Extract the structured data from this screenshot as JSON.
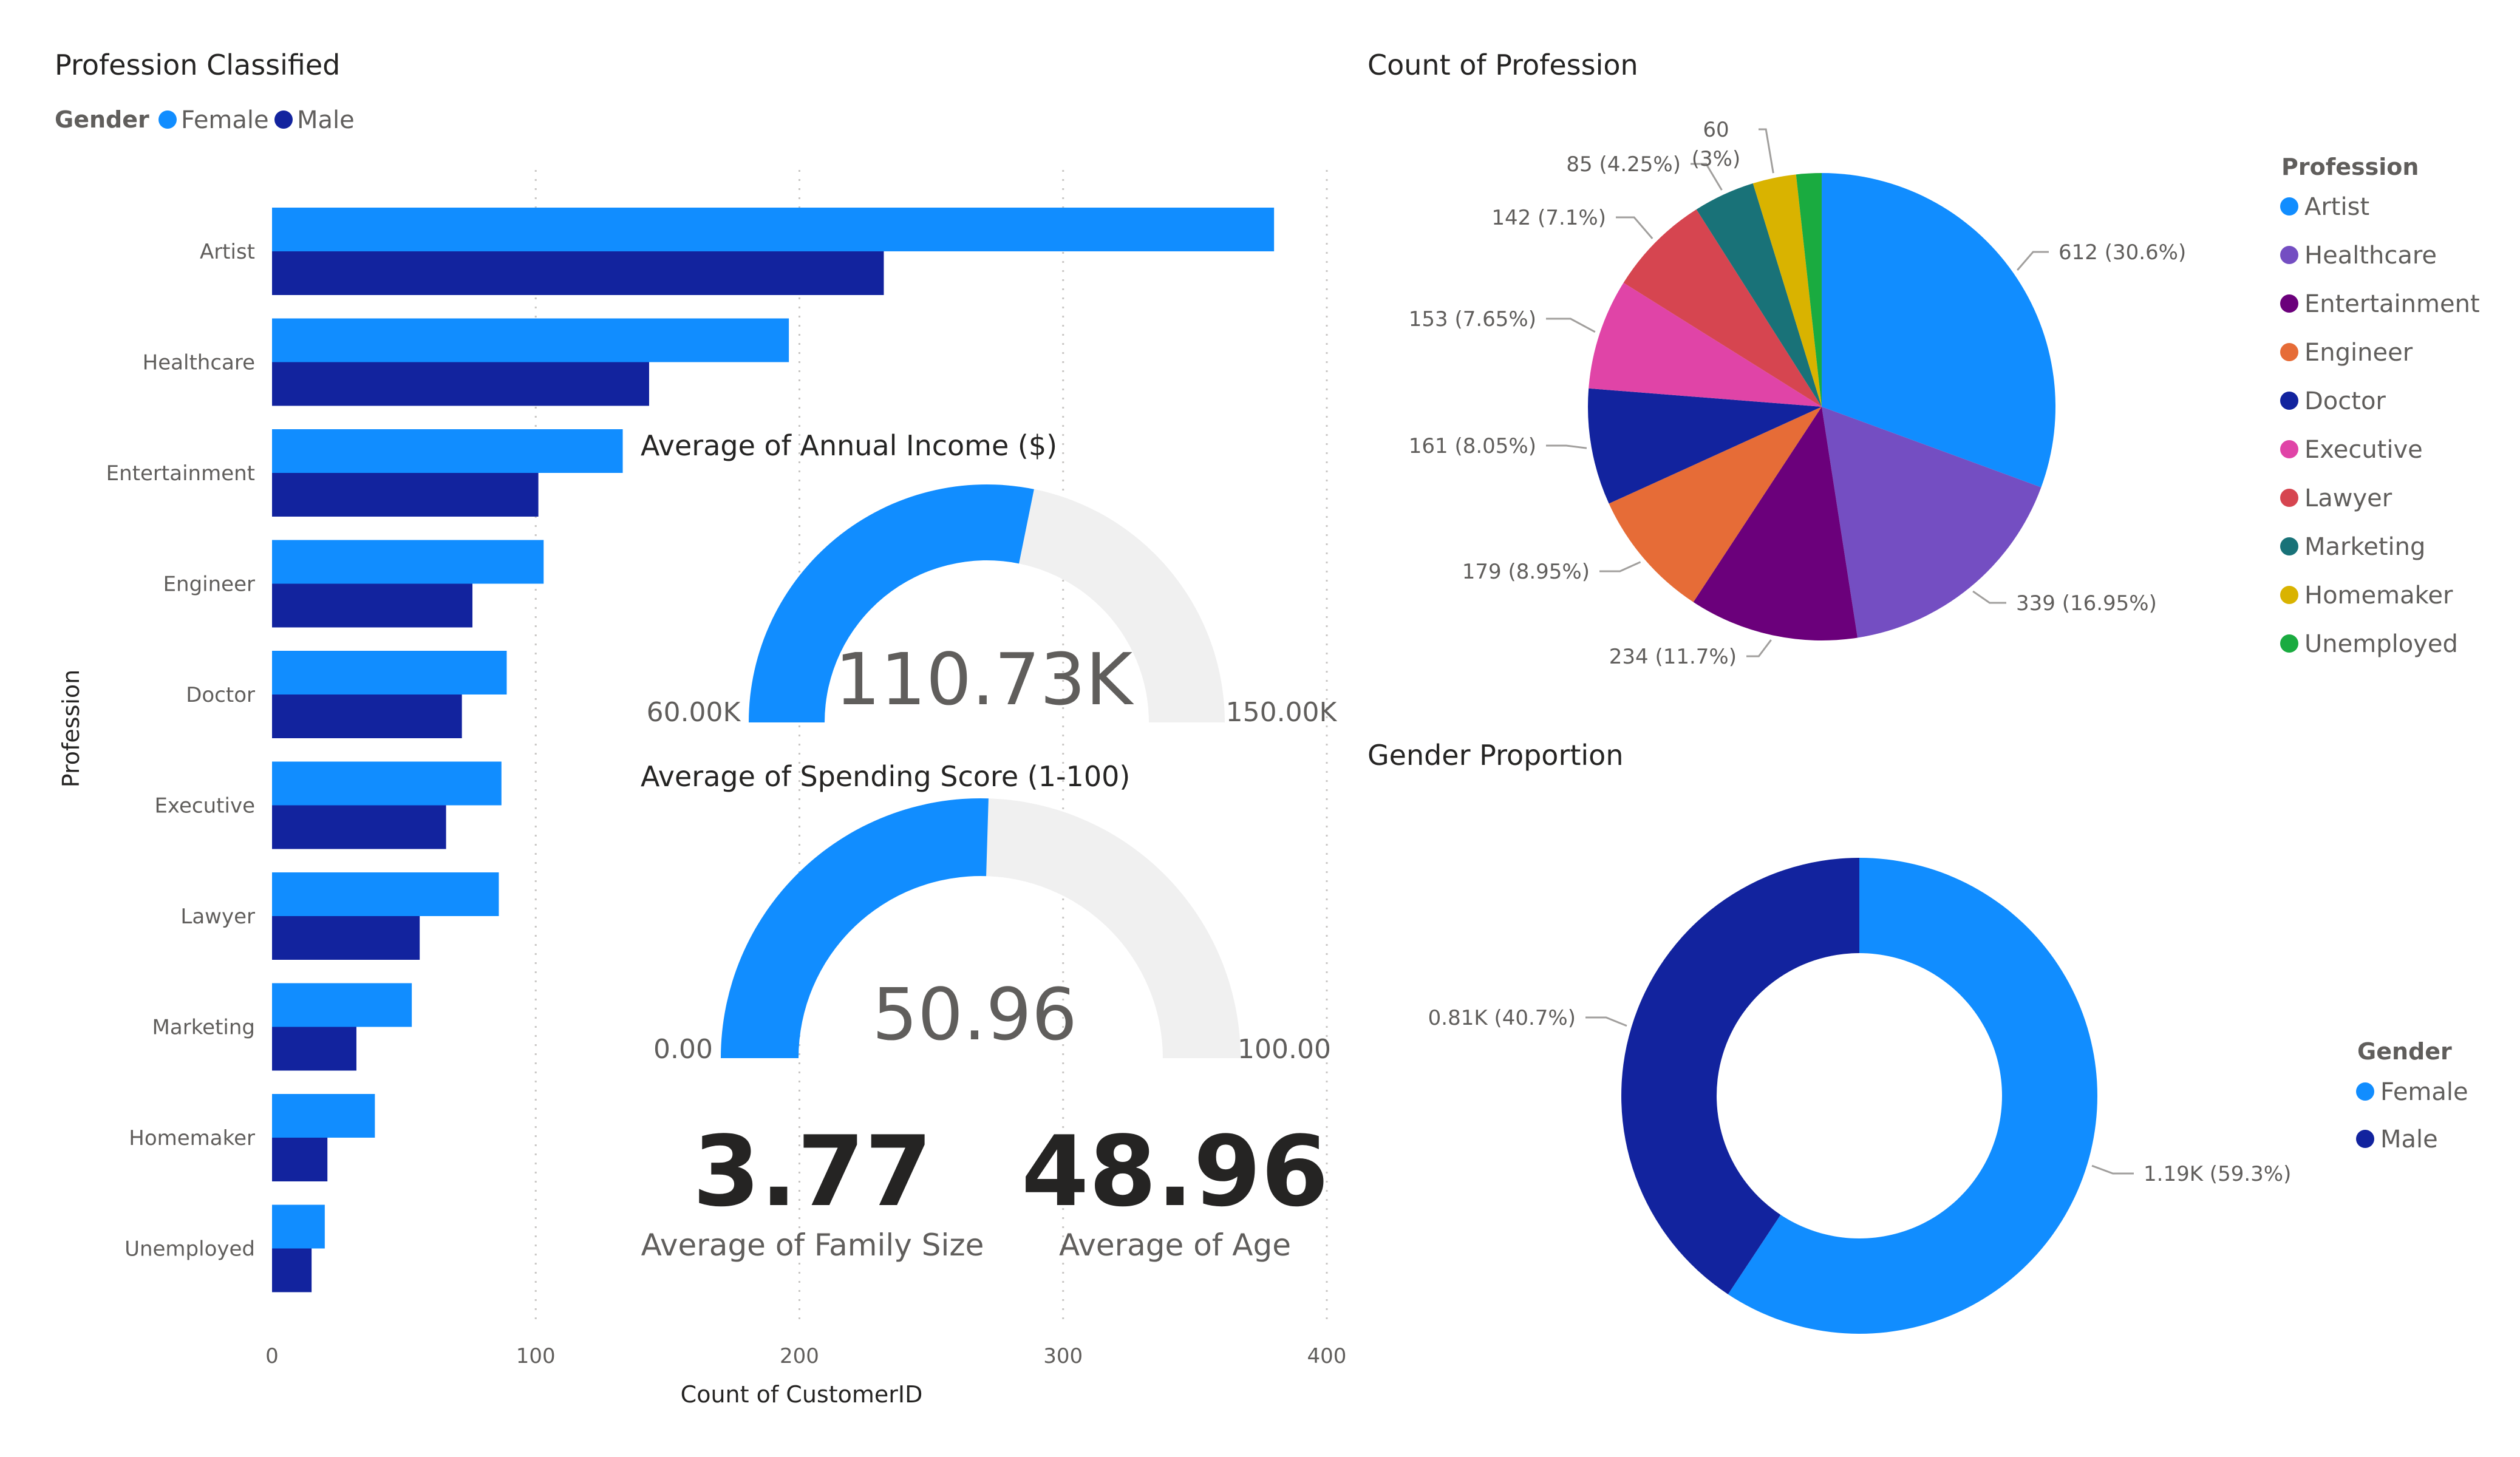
{
  "colors": {
    "female": "#118DFF",
    "male": "#12239E",
    "gauge_track": "#F0F0F0",
    "grid": "#C8C6C4"
  },
  "bar_visual": {
    "title": "Profession Classified",
    "legend_title": "Gender",
    "legend": [
      "Female",
      "Male"
    ],
    "y_axis_title": "Profession",
    "x_axis_title": "Count of CustomerID",
    "x_ticks": [
      "0",
      "100",
      "200",
      "300",
      "400"
    ]
  },
  "pie_visual": {
    "title": "Count of Profession",
    "legend_title": "Profession"
  },
  "donut_visual": {
    "title": "Gender Proportion",
    "legend_title": "Gender",
    "legend": [
      "Female",
      "Male"
    ]
  },
  "gauge_income": {
    "title": "Average of Annual Income ($)",
    "value": 110.73,
    "value_label": "110.73K",
    "min": 60,
    "max": 150,
    "min_label": "60.00K",
    "max_label": "150.00K"
  },
  "gauge_spending": {
    "title": "Average of Spending Score (1-100)",
    "value": 50.96,
    "value_label": "50.96",
    "min": 0,
    "max": 100,
    "min_label": "0.00",
    "max_label": "100.00"
  },
  "card_family": {
    "value": "3.77",
    "label": "Average of Family Size"
  },
  "card_age": {
    "value": "48.96",
    "label": "Average of Age"
  },
  "chart_data": [
    {
      "type": "bar",
      "orientation": "horizontal",
      "title": "Profession Classified",
      "xlabel": "Count of CustomerID",
      "ylabel": "Profession",
      "xlim": [
        0,
        400
      ],
      "grid": true,
      "legend_position": "top-left",
      "categories": [
        "Artist",
        "Healthcare",
        "Entertainment",
        "Engineer",
        "Doctor",
        "Executive",
        "Lawyer",
        "Marketing",
        "Homemaker",
        "Unemployed"
      ],
      "series": [
        {
          "name": "Female",
          "values": [
            380,
            196,
            133,
            103,
            89,
            87,
            86,
            53,
            39,
            20
          ]
        },
        {
          "name": "Male",
          "values": [
            232,
            143,
            101,
            76,
            72,
            66,
            56,
            32,
            21,
            15
          ]
        }
      ]
    },
    {
      "type": "pie",
      "title": "Count of Profession",
      "legend_position": "right",
      "slices": [
        {
          "label": "Artist",
          "value": 612,
          "data_label": "612 (30.6%)",
          "color": "#118DFF"
        },
        {
          "label": "Healthcare",
          "value": 339,
          "data_label": "339 (16.95%)",
          "color": "#744EC2"
        },
        {
          "label": "Entertainment",
          "value": 234,
          "data_label": "234 (11.7%)",
          "color": "#6B007B"
        },
        {
          "label": "Engineer",
          "value": 179,
          "data_label": "179 (8.95%)",
          "color": "#E66C37"
        },
        {
          "label": "Doctor",
          "value": 161,
          "data_label": "161 (8.05%)",
          "color": "#12239E"
        },
        {
          "label": "Executive",
          "value": 153,
          "data_label": "153 (7.65%)",
          "color": "#E044A7"
        },
        {
          "label": "Lawyer",
          "value": 142,
          "data_label": "142 (7.1%)",
          "color": "#D64550"
        },
        {
          "label": "Marketing",
          "value": 85,
          "data_label": "85 (4.25%)",
          "color": "#197278"
        },
        {
          "label": "Homemaker",
          "value": 60,
          "data_label": "60 (3%)",
          "data_label_lines": [
            "60",
            "(3%)"
          ],
          "color": "#D9B300"
        },
        {
          "label": "Unemployed",
          "value": 35,
          "data_label": "",
          "color": "#1AAB40"
        }
      ]
    },
    {
      "type": "pie",
      "subtype": "donut",
      "title": "Gender Proportion",
      "legend_position": "right",
      "slices": [
        {
          "label": "Female",
          "value": 1186,
          "data_label": "1.19K (59.3%)",
          "color": "#118DFF"
        },
        {
          "label": "Male",
          "value": 814,
          "data_label": "0.81K (40.7%)",
          "color": "#12239E"
        }
      ]
    }
  ]
}
